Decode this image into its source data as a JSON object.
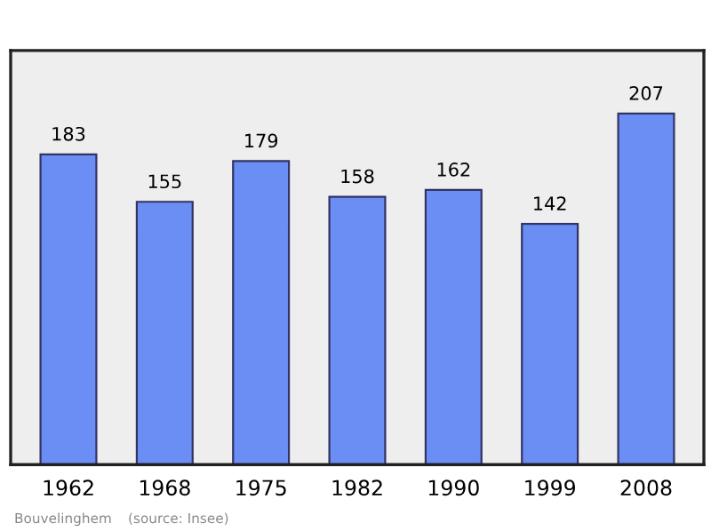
{
  "chart_data": {
    "type": "bar",
    "categories": [
      "1962",
      "1968",
      "1975",
      "1982",
      "1990",
      "1999",
      "2008"
    ],
    "values": [
      183,
      155,
      179,
      158,
      162,
      142,
      207
    ],
    "color": "#6b8ef5",
    "data_labels": true,
    "grid": false,
    "annotations": [
      "Bouvelinghem",
      "(source: Insee)"
    ]
  }
}
